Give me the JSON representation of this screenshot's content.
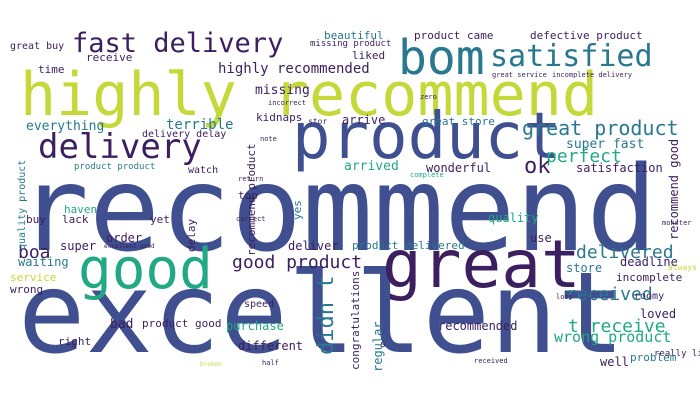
{
  "palette": {
    "background": "#ffffff",
    "dark_purple": "#3b1f5e",
    "indigo": "#3f4f8f",
    "blue": "#39568c",
    "teal": "#2a788e",
    "green": "#22a884",
    "lime": "#c4d83a",
    "yellow_green": "#a8d43a"
  },
  "words": [
    {
      "text": "recommend",
      "color": "#3f4f8f"
    },
    {
      "text": "excellent",
      "color": "#3f4f8f"
    },
    {
      "text": "highly recommend",
      "color": "#c4d83a"
    },
    {
      "text": "product",
      "color": "#3f4f8f"
    },
    {
      "text": "good",
      "color": "#22a884"
    },
    {
      "text": "great",
      "color": "#3b1f5e"
    },
    {
      "text": "bom",
      "color": "#2a788e"
    },
    {
      "text": "satisfied",
      "color": "#2a788e"
    },
    {
      "text": "delivery",
      "color": "#3b1f5e"
    },
    {
      "text": "fast delivery",
      "color": "#3b1f5e"
    },
    {
      "text": "great product",
      "color": "#2a788e"
    },
    {
      "text": "perfect",
      "color": "#22a884"
    },
    {
      "text": "delivered",
      "color": "#2a788e"
    },
    {
      "text": "received",
      "color": "#2a788e"
    },
    {
      "text": "good product",
      "color": "#3b1f5e"
    },
    {
      "text": "ok",
      "color": "#3b1f5e"
    },
    {
      "text": "boa",
      "color": "#3b1f5e"
    },
    {
      "text": "didn t",
      "color": "#2a788e"
    },
    {
      "text": "t receive",
      "color": "#22a884"
    },
    {
      "text": "wrong product",
      "color": "#22a884"
    },
    {
      "text": "highly recommended",
      "color": "#3b1f5e"
    },
    {
      "text": "missing",
      "color": "#3b1f5e"
    },
    {
      "text": "liked",
      "color": "#3b1f5e"
    },
    {
      "text": "arrived",
      "color": "#22a884"
    },
    {
      "text": "wonderful",
      "color": "#3b1f5e"
    },
    {
      "text": "satisfaction",
      "color": "#3b1f5e"
    },
    {
      "text": "super fast",
      "color": "#2a788e"
    },
    {
      "text": "everything",
      "color": "#2a788e"
    },
    {
      "text": "terrible",
      "color": "#2a788e"
    },
    {
      "text": "kidnaps",
      "color": "#3b1f5e"
    },
    {
      "text": "arrive",
      "color": "#3b1f5e"
    },
    {
      "text": "great store",
      "color": "#2a788e"
    },
    {
      "text": "product came",
      "color": "#3b1f5e"
    },
    {
      "text": "defective product",
      "color": "#3b1f5e"
    },
    {
      "text": "beautiful",
      "color": "#2a788e"
    },
    {
      "text": "missing product",
      "color": "#3b1f5e"
    },
    {
      "text": "receive",
      "color": "#3b1f5e"
    },
    {
      "text": "time",
      "color": "#3b1f5e"
    },
    {
      "text": "great buy",
      "color": "#3b1f5e"
    },
    {
      "text": "delivery delay",
      "color": "#3b1f5e"
    },
    {
      "text": "product product",
      "color": "#2a788e"
    },
    {
      "text": "watch",
      "color": "#3b1f5e"
    },
    {
      "text": "buy",
      "color": "#3b1f5e"
    },
    {
      "text": "lack",
      "color": "#3b1f5e"
    },
    {
      "text": "haven",
      "color": "#22a884"
    },
    {
      "text": "yet",
      "color": "#3b1f5e"
    },
    {
      "text": "top",
      "color": "#3b1f5e"
    },
    {
      "text": "order",
      "color": "#3b1f5e"
    },
    {
      "text": "super",
      "color": "#3b1f5e"
    },
    {
      "text": "waiting",
      "color": "#2a788e"
    },
    {
      "text": "service",
      "color": "#c4d83a"
    },
    {
      "text": "wrong",
      "color": "#3b1f5e"
    },
    {
      "text": "bad",
      "color": "#3b1f5e"
    },
    {
      "text": "product good",
      "color": "#3b1f5e"
    },
    {
      "text": "purchase",
      "color": "#22a884"
    },
    {
      "text": "speed",
      "color": "#3b1f5e"
    },
    {
      "text": "deliver",
      "color": "#3b1f5e"
    },
    {
      "text": "product delivered",
      "color": "#2a788e"
    },
    {
      "text": "quality",
      "color": "#22a884"
    },
    {
      "text": "use",
      "color": "#3b1f5e"
    },
    {
      "text": "store",
      "color": "#2a788e"
    },
    {
      "text": "deadline",
      "color": "#3b1f5e"
    },
    {
      "text": "incomplete",
      "color": "#3b1f5e"
    },
    {
      "text": "loved",
      "color": "#3b1f5e"
    },
    {
      "text": "recommended",
      "color": "#3b1f5e"
    },
    {
      "text": "regular",
      "color": "#2a788e"
    },
    {
      "text": "congratulations",
      "color": "#3b1f5e"
    },
    {
      "text": "right",
      "color": "#3b1f5e"
    },
    {
      "text": "different",
      "color": "#3b1f5e"
    },
    {
      "text": "well",
      "color": "#3b1f5e"
    },
    {
      "text": "problem",
      "color": "#2a788e"
    },
    {
      "text": "recommend good",
      "color": "#3b1f5e"
    },
    {
      "text": "yes",
      "color": "#2a788e"
    },
    {
      "text": "delay",
      "color": "#3b1f5e"
    },
    {
      "text": "recommend product",
      "color": "#3b1f5e"
    },
    {
      "text": "quality product",
      "color": "#2a788e"
    },
    {
      "text": "roomy",
      "color": "#3b1f5e"
    },
    {
      "text": "s",
      "color": "#3b1f5e"
    },
    {
      "text": "really liked",
      "color": "#3b1f5e"
    },
    {
      "text": "always",
      "color": "#c4d83a"
    },
    {
      "text": "great service",
      "color": "#3b1f5e"
    },
    {
      "text": "incomplete delivery",
      "color": "#3b1f5e"
    },
    {
      "text": "incorrect",
      "color": "#3b1f5e"
    },
    {
      "text": "zero",
      "color": "#3b1f5e"
    },
    {
      "text": "correct",
      "color": "#3b1f5e"
    },
    {
      "text": "note",
      "color": "#3b1f5e"
    },
    {
      "text": "return",
      "color": "#3b1f5e"
    },
    {
      "text": "excellent good",
      "color": "#3b1f5e"
    },
    {
      "text": "half",
      "color": "#3b1f5e"
    },
    {
      "text": "broken",
      "color": "#c4d83a"
    },
    {
      "text": "complete",
      "color": "#22a884"
    },
    {
      "text": "monster",
      "color": "#3b1f5e"
    },
    {
      "text": "received",
      "color": "#3b1f5e"
    },
    {
      "text": "loss",
      "color": "#3b1f5e"
    },
    {
      "text": "stor",
      "color": "#3b1f5e"
    }
  ]
}
